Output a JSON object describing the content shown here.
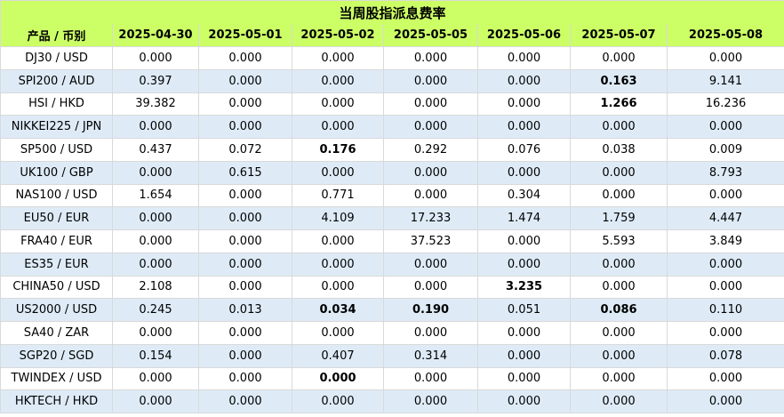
{
  "title": "当周股指派息费率",
  "header": {
    "product_label": "产品 / 币别",
    "dates": [
      "2025-04-30",
      "2025-05-01",
      "2025-05-02",
      "2025-05-05",
      "2025-05-06",
      "2025-05-07",
      "2025-05-08"
    ]
  },
  "rows": [
    {
      "product": "DJ30 / USD",
      "values": [
        "0.000",
        "0.000",
        "0.000",
        "0.000",
        "0.000",
        "0.000",
        "0.000"
      ],
      "bold": []
    },
    {
      "product": "SPI200 / AUD",
      "values": [
        "0.397",
        "0.000",
        "0.000",
        "0.000",
        "0.000",
        "0.163",
        "9.141"
      ],
      "bold": [
        5
      ]
    },
    {
      "product": "HSI / HKD",
      "values": [
        "39.382",
        "0.000",
        "0.000",
        "0.000",
        "0.000",
        "1.266",
        "16.236"
      ],
      "bold": [
        5
      ]
    },
    {
      "product": "NIKKEI225 / JPN",
      "values": [
        "0.000",
        "0.000",
        "0.000",
        "0.000",
        "0.000",
        "0.000",
        "0.000"
      ],
      "bold": []
    },
    {
      "product": "SP500 / USD",
      "values": [
        "0.437",
        "0.072",
        "0.176",
        "0.292",
        "0.076",
        "0.038",
        "0.009"
      ],
      "bold": [
        2
      ]
    },
    {
      "product": "UK100 / GBP",
      "values": [
        "0.000",
        "0.615",
        "0.000",
        "0.000",
        "0.000",
        "0.000",
        "8.793"
      ],
      "bold": []
    },
    {
      "product": "NAS100 / USD",
      "values": [
        "1.654",
        "0.000",
        "0.771",
        "0.000",
        "0.304",
        "0.000",
        "0.000"
      ],
      "bold": []
    },
    {
      "product": "EU50 / EUR",
      "values": [
        "0.000",
        "0.000",
        "4.109",
        "17.233",
        "1.474",
        "1.759",
        "4.447"
      ],
      "bold": []
    },
    {
      "product": "FRA40 / EUR",
      "values": [
        "0.000",
        "0.000",
        "0.000",
        "37.523",
        "0.000",
        "5.593",
        "3.849"
      ],
      "bold": []
    },
    {
      "product": "ES35 / EUR",
      "values": [
        "0.000",
        "0.000",
        "0.000",
        "0.000",
        "0.000",
        "0.000",
        "0.000"
      ],
      "bold": []
    },
    {
      "product": "CHINA50 / USD",
      "values": [
        "2.108",
        "0.000",
        "0.000",
        "0.000",
        "3.235",
        "0.000",
        "0.000"
      ],
      "bold": [
        4
      ]
    },
    {
      "product": "US2000 / USD",
      "values": [
        "0.245",
        "0.013",
        "0.034",
        "0.190",
        "0.051",
        "0.086",
        "0.110"
      ],
      "bold": [
        2,
        3,
        5
      ]
    },
    {
      "product": "SA40 / ZAR",
      "values": [
        "0.000",
        "0.000",
        "0.000",
        "0.000",
        "0.000",
        "0.000",
        "0.000"
      ],
      "bold": []
    },
    {
      "product": "SGP20 / SGD",
      "values": [
        "0.154",
        "0.000",
        "0.407",
        "0.314",
        "0.000",
        "0.000",
        "0.078"
      ],
      "bold": []
    },
    {
      "product": "TWINDEX / USD",
      "values": [
        "0.000",
        "0.000",
        "0.000",
        "0.000",
        "0.000",
        "0.000",
        "0.000"
      ],
      "bold": [
        2
      ]
    },
    {
      "product": "HKTECH / HKD",
      "values": [
        "0.000",
        "0.000",
        "0.000",
        "0.000",
        "0.000",
        "0.000",
        "0.000"
      ],
      "bold": []
    }
  ],
  "colors": {
    "header_background": "#ccff66",
    "odd_row_background": "#deebf7",
    "even_row_background": "#ffffff",
    "grid_line": "#d9d9d9"
  }
}
